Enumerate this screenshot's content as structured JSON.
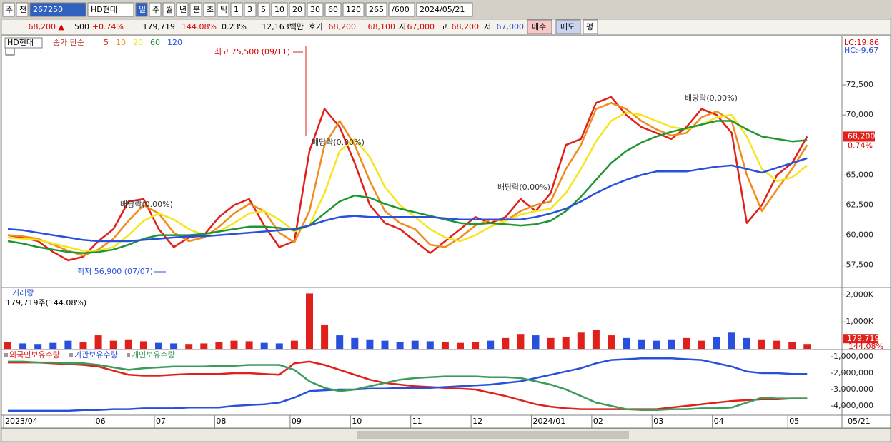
{
  "toolbar": [
    "주",
    "전",
    "267250",
    "HD현대",
    "일",
    "주",
    "월",
    "년",
    "분",
    "초",
    "틱",
    "1",
    "3",
    "5",
    "10",
    "20",
    "30",
    "60",
    "120",
    "265",
    "/600",
    "2024/05/21"
  ],
  "infobar": [
    "68,200 ▲",
    "500",
    "+0.74%",
    "179,719",
    "144.08%",
    "0.23%",
    "12,163백만",
    "호가",
    "68,200",
    "68,100",
    "시",
    "67,000",
    "고",
    "68,200",
    "저",
    "67,000",
    "매수",
    "매도",
    "평"
  ],
  "chart_data": [
    {
      "type": "line",
      "title": "HD현대",
      "subtitle": "종가 단순",
      "series": [
        {
          "name": "5",
          "color": "#e0201a",
          "values": [
            60000,
            59800,
            59500,
            58600,
            57900,
            58200,
            59500,
            60500,
            62800,
            63000,
            60500,
            59000,
            59800,
            60000,
            61500,
            62500,
            63000,
            60800,
            59000,
            59500,
            67000,
            70500,
            69000,
            66000,
            62500,
            61000,
            60500,
            59500,
            58500,
            59500,
            60500,
            61500,
            61000,
            61500,
            63000,
            62000,
            63500,
            67500,
            68000,
            71000,
            71500,
            70000,
            69000,
            68500,
            68000,
            69000,
            70500,
            70000,
            68500,
            61000,
            62500,
            65000,
            66000,
            68200
          ]
        },
        {
          "name": "10",
          "color": "#f08c1e",
          "values": [
            60000,
            59900,
            59700,
            59200,
            58700,
            58300,
            58800,
            59700,
            61200,
            62500,
            61800,
            60200,
            59500,
            59800,
            60700,
            61800,
            62600,
            62000,
            60200,
            59400,
            62000,
            67500,
            69500,
            67500,
            64500,
            62000,
            61000,
            60500,
            59200,
            59000,
            59800,
            60800,
            61300,
            61200,
            62000,
            62500,
            62800,
            65500,
            67500,
            70500,
            71000,
            70500,
            69500,
            68800,
            68300,
            68500,
            69800,
            70300,
            69500,
            65000,
            62000,
            63800,
            65500,
            67500
          ]
        },
        {
          "name": "20",
          "color": "#f5e61e",
          "values": [
            59800,
            59700,
            59600,
            59300,
            59000,
            58700,
            58700,
            59000,
            60000,
            61200,
            61800,
            61300,
            60500,
            60000,
            60300,
            61000,
            61800,
            62000,
            61300,
            60300,
            60800,
            63500,
            67000,
            68000,
            66500,
            64000,
            62500,
            61500,
            60500,
            59800,
            59500,
            60000,
            60700,
            61200,
            61700,
            62000,
            62200,
            63500,
            65500,
            67800,
            69500,
            70200,
            70000,
            69500,
            69000,
            68800,
            69200,
            69800,
            70000,
            68200,
            65500,
            64500,
            64800,
            65800
          ]
        },
        {
          "name": "60",
          "color": "#1e9632",
          "values": [
            59500,
            59300,
            59000,
            58800,
            58600,
            58500,
            58600,
            58800,
            59200,
            59700,
            60000,
            60000,
            60000,
            60100,
            60300,
            60500,
            60700,
            60700,
            60600,
            60400,
            60800,
            61800,
            62800,
            63300,
            63100,
            62600,
            62200,
            61900,
            61600,
            61300,
            61000,
            60900,
            61000,
            60900,
            60800,
            60900,
            61200,
            62000,
            63200,
            64600,
            66000,
            67000,
            67700,
            68200,
            68600,
            68900,
            69200,
            69500,
            69500,
            68800,
            68200,
            68000,
            67800,
            67900
          ]
        },
        {
          "name": "120",
          "color": "#2850dc",
          "values": [
            60500,
            60400,
            60200,
            60000,
            59800,
            59600,
            59500,
            59500,
            59500,
            59600,
            59700,
            59800,
            59900,
            59900,
            60000,
            60100,
            60200,
            60300,
            60400,
            60500,
            60800,
            61200,
            61500,
            61600,
            61500,
            61500,
            61500,
            61500,
            61500,
            61400,
            61300,
            61300,
            61300,
            61300,
            61300,
            61500,
            61800,
            62200,
            62800,
            63500,
            64100,
            64600,
            65000,
            65300,
            65300,
            65300,
            65500,
            65700,
            65800,
            65500,
            65200,
            65600,
            66000,
            66400
          ]
        }
      ],
      "ylim": [
        55700,
        76300
      ],
      "yticks": [
        {
          "value": 57500,
          "label": "57,500"
        },
        {
          "value": 60000,
          "label": "60,000"
        },
        {
          "value": 62500,
          "label": "62,500"
        },
        {
          "value": 65000,
          "label": "65,000"
        },
        {
          "value": 70000,
          "label": "70,000"
        },
        {
          "value": 72500,
          "label": "72,500"
        }
      ],
      "grid": false,
      "annotations": [
        "최고 75,500 (09/11)",
        "최저 56,900 (07/07)",
        "배당락(0.00%)",
        "배당락(0.00%)",
        "배당락(0.00%)",
        "배당락(0.00%)"
      ],
      "lc": "LC:19.86",
      "hc": "HC:-9.67",
      "price_marker": "68,200",
      "change_marker": "0.74%"
    },
    {
      "type": "bar",
      "title": "거래량",
      "subtitle": "179,719주(144.08%)",
      "values": [
        250000,
        200000,
        180000,
        220000,
        300000,
        250000,
        500000,
        300000,
        350000,
        280000,
        220000,
        200000,
        180000,
        200000,
        250000,
        300000,
        280000,
        220000,
        200000,
        300000,
        2050000,
        900000,
        500000,
        400000,
        350000,
        300000,
        250000,
        300000,
        280000,
        250000,
        220000,
        250000,
        300000,
        400000,
        550000,
        500000,
        400000,
        450000,
        600000,
        700000,
        500000,
        400000,
        350000,
        300000,
        350000,
        400000,
        300000,
        450000,
        600000,
        400000,
        350000,
        300000,
        250000,
        179719
      ],
      "last_value_label": "179,719",
      "last_change_label": "144.08%",
      "ylim": [
        0,
        2220000
      ],
      "yticks": [
        {
          "value": 1000000,
          "label": "1,000K"
        },
        {
          "value": 2000000,
          "label": "2,000K"
        }
      ],
      "up_color": "#e0201a",
      "down_color": "#2850dc"
    },
    {
      "type": "line",
      "categories": [
        "2023/04",
        null,
        null,
        null,
        null,
        null,
        "06",
        null,
        null,
        null,
        "07",
        null,
        null,
        null,
        "08",
        null,
        null,
        null,
        null,
        "09",
        null,
        null,
        null,
        "10",
        null,
        null,
        null,
        "11",
        null,
        null,
        null,
        "12",
        null,
        null,
        null,
        "2024/01",
        null,
        null,
        null,
        "02",
        null,
        null,
        null,
        "03",
        null,
        null,
        null,
        "04",
        null,
        null,
        null,
        null,
        "05",
        null
      ],
      "cursor_label": "05/21",
      "series": [
        {
          "name": "외국인보유수량",
          "color": "#e0201a",
          "values": [
            -1350000,
            -1350000,
            -1350000,
            -1400000,
            -1450000,
            -1500000,
            -1600000,
            -1850000,
            -2100000,
            -2150000,
            -2150000,
            -2100000,
            -2050000,
            -2050000,
            -2050000,
            -2000000,
            -2000000,
            -2050000,
            -2100000,
            -1400000,
            -1300000,
            -1500000,
            -1800000,
            -2100000,
            -2400000,
            -2600000,
            -2700000,
            -2800000,
            -2850000,
            -2900000,
            -2950000,
            -3000000,
            -3200000,
            -3400000,
            -3650000,
            -3900000,
            -4050000,
            -4150000,
            -4200000,
            -4200000,
            -4200000,
            -4200000,
            -4200000,
            -4200000,
            -4100000,
            -4000000,
            -3900000,
            -3800000,
            -3700000,
            -3650000,
            -3600000,
            -3600000,
            -3550000,
            -3550000
          ]
        },
        {
          "name": "기관보유수량",
          "color": "#2850dc",
          "values": [
            -4300000,
            -4300000,
            -4300000,
            -4300000,
            -4300000,
            -4250000,
            -4250000,
            -4200000,
            -4200000,
            -4150000,
            -4150000,
            -4150000,
            -4100000,
            -4100000,
            -4100000,
            -4000000,
            -3950000,
            -3900000,
            -3800000,
            -3500000,
            -3100000,
            -3050000,
            -3000000,
            -3000000,
            -2950000,
            -2950000,
            -2900000,
            -2900000,
            -2900000,
            -2850000,
            -2800000,
            -2750000,
            -2700000,
            -2600000,
            -2500000,
            -2300000,
            -2100000,
            -1900000,
            -1700000,
            -1400000,
            -1200000,
            -1150000,
            -1100000,
            -1100000,
            -1100000,
            -1150000,
            -1200000,
            -1400000,
            -1600000,
            -1900000,
            -2000000,
            -2000000,
            -2050000,
            -2050000
          ]
        },
        {
          "name": "개인보유수량",
          "color": "#3c9a5a",
          "values": [
            -1300000,
            -1300000,
            -1350000,
            -1350000,
            -1400000,
            -1400000,
            -1500000,
            -1650000,
            -1800000,
            -1700000,
            -1650000,
            -1600000,
            -1600000,
            -1600000,
            -1550000,
            -1550000,
            -1500000,
            -1500000,
            -1500000,
            -1800000,
            -2500000,
            -2900000,
            -3100000,
            -3000000,
            -2800000,
            -2600000,
            -2400000,
            -2300000,
            -2250000,
            -2200000,
            -2200000,
            -2200000,
            -2250000,
            -2250000,
            -2300000,
            -2500000,
            -2700000,
            -3000000,
            -3400000,
            -3800000,
            -4000000,
            -4200000,
            -4250000,
            -4250000,
            -4200000,
            -4200000,
            -4150000,
            -4150000,
            -4100000,
            -3800000,
            -3500000,
            -3550000,
            -3550000,
            -3550000
          ]
        }
      ],
      "ylim": [
        -4480000,
        -650000
      ],
      "yticks": [
        {
          "value": -4000000,
          "label": "-4,000,000"
        },
        {
          "value": -3000000,
          "label": "-3,000,000"
        },
        {
          "value": -2000000,
          "label": "-2,000,000"
        },
        {
          "value": -1000000,
          "label": "-1,000,000"
        }
      ]
    }
  ]
}
